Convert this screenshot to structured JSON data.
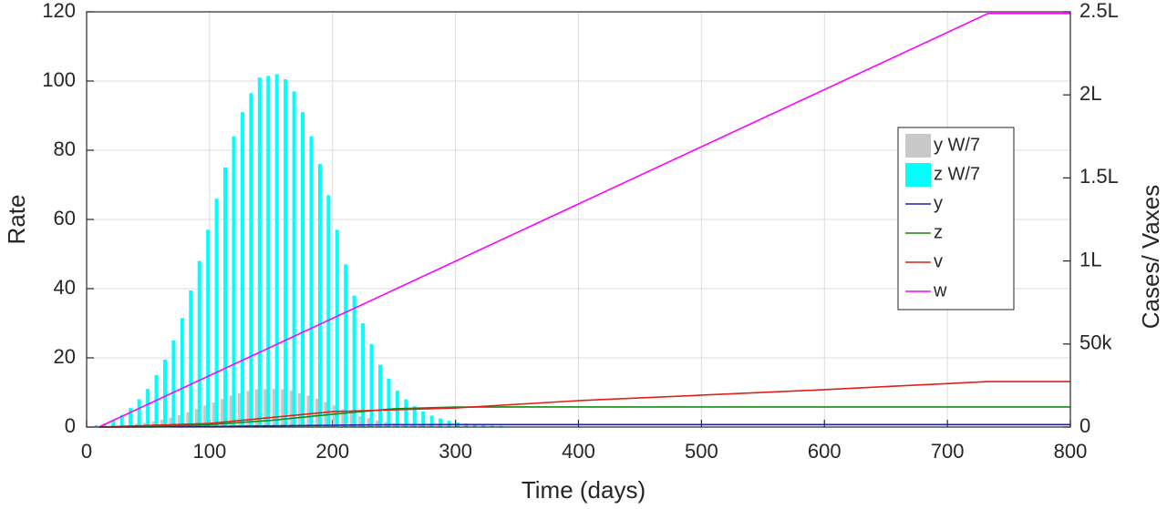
{
  "chart_data": {
    "type": "combo",
    "xlabel": "Time (days)",
    "ylabel": "Rate",
    "y2label": "Cases/ Vaxes",
    "xlim": [
      0,
      800
    ],
    "xticks": [
      0,
      100,
      200,
      300,
      400,
      500,
      600,
      700,
      800
    ],
    "ylim": [
      0,
      120
    ],
    "yticks": [
      0,
      20,
      40,
      60,
      80,
      100,
      120
    ],
    "y2lim": [
      0,
      250000
    ],
    "y2ticks": [
      0,
      {
        "value": 50000,
        "label": "50k"
      },
      {
        "value": 100000,
        "label": "1L"
      },
      {
        "value": 150000,
        "label": "1.5L"
      },
      {
        "value": 200000,
        "label": "2L"
      },
      {
        "value": 250000,
        "label": "2.5L"
      }
    ],
    "grid": true,
    "legend": "right",
    "series": [
      {
        "name": "y W/7",
        "type": "bar",
        "color": "#c8c8c8",
        "x": [
          7,
          14,
          21,
          28,
          35,
          42,
          49,
          56,
          63,
          70,
          77,
          84,
          91,
          98,
          105,
          112,
          119,
          126,
          133,
          140,
          147,
          154,
          161,
          168,
          175,
          182,
          189,
          196,
          203,
          210,
          217,
          224,
          231,
          238,
          245,
          252,
          259,
          266,
          273,
          280,
          287,
          294,
          301,
          308,
          315,
          322,
          329,
          336
        ],
        "values": [
          0.1,
          0.1,
          0.2,
          0.4,
          0.6,
          0.9,
          1.2,
          1.6,
          2.1,
          2.7,
          3.4,
          4.3,
          5.2,
          6.2,
          7.1,
          8.1,
          9.1,
          9.8,
          10.4,
          10.9,
          11,
          11,
          10.9,
          10.5,
          9.8,
          9.1,
          8.2,
          7.2,
          6.2,
          5.1,
          4.1,
          3.2,
          2.6,
          1.9,
          1.5,
          1.1,
          0.9,
          0.6,
          0.5,
          0.4,
          0.3,
          0.2,
          0.1,
          0.1,
          0.1,
          0.1,
          0,
          0
        ]
      },
      {
        "name": "z W/7",
        "type": "bar",
        "color": "#00ffff",
        "x": [
          7,
          14,
          21,
          28,
          35,
          42,
          49,
          56,
          63,
          70,
          77,
          84,
          91,
          98,
          105,
          112,
          119,
          126,
          133,
          140,
          147,
          154,
          161,
          168,
          175,
          182,
          189,
          196,
          203,
          210,
          217,
          224,
          231,
          238,
          245,
          252,
          259,
          266,
          273,
          280,
          287,
          294,
          301,
          308,
          315,
          322,
          329,
          336
        ],
        "values": [
          0.5,
          1,
          2,
          3.5,
          5.5,
          8,
          11,
          15,
          19.5,
          25,
          31.5,
          39.5,
          48,
          57,
          66,
          75,
          84,
          91,
          96.5,
          101,
          101.5,
          102,
          100.5,
          97,
          91,
          84,
          76,
          67,
          57,
          47,
          38,
          30,
          24,
          18,
          14,
          10.5,
          8,
          6,
          4.5,
          3.3,
          2.5,
          1.8,
          1.3,
          1,
          0.7,
          0.5,
          0.4,
          0.3
        ]
      },
      {
        "name": "y",
        "type": "line",
        "axis": "y2",
        "color": "#1f1fa8",
        "x": [
          10,
          100,
          150,
          200,
          250,
          300,
          800
        ],
        "values": [
          0,
          300,
          700,
          1100,
          1400,
          1500,
          1500
        ]
      },
      {
        "name": "z",
        "type": "line",
        "axis": "y2",
        "color": "#138a13",
        "x": [
          10,
          50,
          100,
          150,
          200,
          250,
          300,
          350,
          800
        ],
        "values": [
          0,
          500,
          1500,
          4000,
          7700,
          11000,
          12000,
          12100,
          12100
        ]
      },
      {
        "name": "v",
        "type": "line",
        "axis": "y2",
        "color": "#e0201a",
        "x": [
          10,
          100,
          200,
          300,
          400,
          500,
          600,
          733,
          800
        ],
        "values": [
          0,
          2200,
          9300,
          11500,
          15900,
          19200,
          22500,
          27400,
          27400
        ]
      },
      {
        "name": "w",
        "type": "line",
        "axis": "y2",
        "color": "#ff00ff",
        "x": [
          10,
          733,
          800
        ],
        "values": [
          0,
          249000,
          249000
        ]
      }
    ]
  }
}
